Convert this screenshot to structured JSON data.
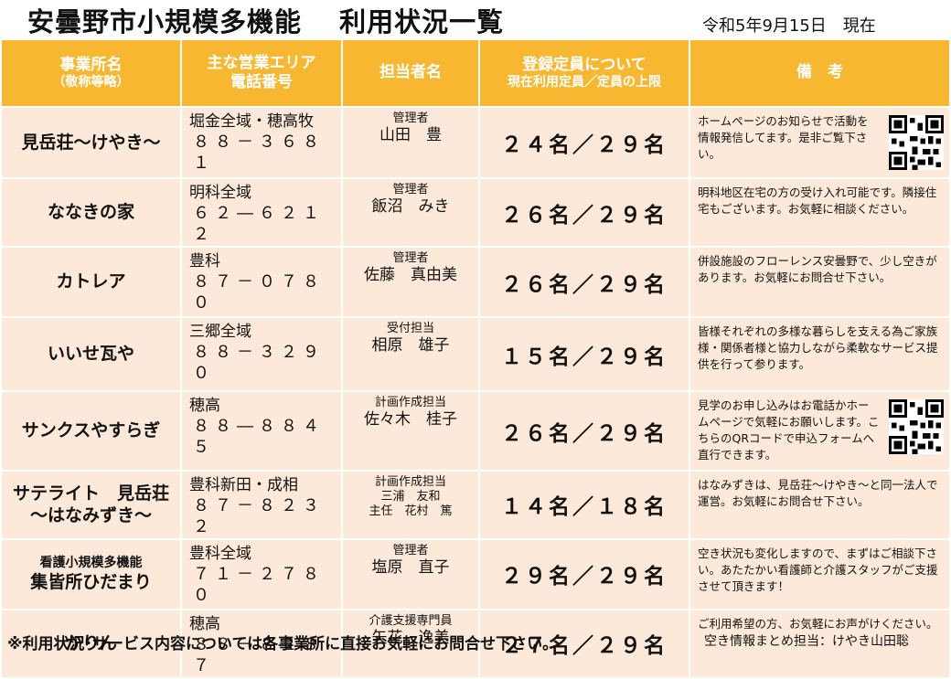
{
  "header": {
    "title": "安曇野市小規模多機能　 利用状況一覧",
    "date": "令和5年9月15日　現在"
  },
  "columns": {
    "name": [
      "事業所名",
      "（敬称等略）"
    ],
    "area": [
      "主な営業エリア",
      "電話番号"
    ],
    "staff": [
      "担当者名"
    ],
    "count": [
      "登録定員について",
      "現在利用定員／定員の上限"
    ],
    "notes": [
      "備　考"
    ]
  },
  "rows": [
    {
      "name_pre": "",
      "name": "見岳荘～けやき～",
      "area": "堀金全域・穂高牧",
      "phone": "８８－３６８１",
      "staff_role": "管理者",
      "staff_name": "山田　豊",
      "staff_extra": "",
      "count": "２４名／２９名",
      "notes": "ホームページのお知らせで活動を情報発信してます。是非ご覧下さい。",
      "qr": "qr-code-icon"
    },
    {
      "name_pre": "",
      "name": "ななきの家",
      "area": "明科全域",
      "phone": "６２―６２１２",
      "staff_role": "管理者",
      "staff_name": "飯沼　みき",
      "staff_extra": "",
      "count": "２６名／２９名",
      "notes": "明科地区在宅の方の受け入れ可能です。隣接住宅もございます。お気軽に相談ください。",
      "qr": ""
    },
    {
      "name_pre": "",
      "name": "カトレア",
      "area": "豊科",
      "phone": "８７－０７８０",
      "staff_role": "管理者",
      "staff_name": "佐藤　真由美",
      "staff_extra": "",
      "count": "２６名／２９名",
      "notes": "併設施設のフローレンス安曇野で、少し空きがあります。お気軽にお問合せ下さい。",
      "qr": ""
    },
    {
      "name_pre": "",
      "name": "いいせ瓦や",
      "area": "三郷全域",
      "phone": "８８－３２９０",
      "staff_role": "受付担当",
      "staff_name": "相原　雄子",
      "staff_extra": "",
      "count": "１５名／２９名",
      "notes": "皆様それぞれの多様な暮らしを支える為ご家族様・関係者様と協力しながら柔軟なサービス提供を行って参ります。",
      "qr": ""
    },
    {
      "name_pre": "",
      "name": "サンクスやすらぎ",
      "area": "穂高",
      "phone": "８８―８８４５",
      "staff_role": "計画作成担当",
      "staff_name": "佐々木　桂子",
      "staff_extra": "",
      "count": "２６名／２９名",
      "notes": "見学のお申し込みはお電話かホームページで気軽にお願いします。こちらのQRコードで申込フォームへ直行できます。",
      "qr": "qr-code-icon"
    },
    {
      "name_pre": "",
      "name": "サテライト　見岳荘\n～はなみずき～",
      "area": "豊科新田・成相",
      "phone": "８７－８２３２",
      "staff_role": "計画作成担当",
      "staff_name": "",
      "staff_extra": "三浦　友和\n主任　花村　篤",
      "count": "１４名／１８名",
      "notes": "はなみずきは、見岳荘～けやき～と同一法人で運営。お気軽にお問合せ下さい。",
      "qr": ""
    },
    {
      "name_pre": "看護小規模多機能",
      "name": "集皆所ひだまり",
      "area": "豊科全域",
      "phone": "７１－２７８０",
      "staff_role": "管理者",
      "staff_name": "塩原　直子",
      "staff_extra": "",
      "count": "２９名／２９名",
      "notes": "空き状況も変化しますので、まずはご相談下さい。あたたかい看護師と介護スタッフがご支援させて頂きます！",
      "qr": ""
    },
    {
      "name_pre": "",
      "name": "かりん",
      "area": "穂高",
      "phone": "８８－８２８７",
      "staff_role": "介護支援専門員",
      "staff_name": "矢花　逸美",
      "staff_extra": "",
      "count": "２７名／２９名",
      "notes": "ご利用希望の方、お気軽にお声がけください。",
      "qr": ""
    }
  ],
  "footer": {
    "left": "※利用状況･サービス内容については各事業所に直接お気軽にお問合せ下さい。",
    "right": "空き情報まとめ担当：けやき山田聡"
  }
}
